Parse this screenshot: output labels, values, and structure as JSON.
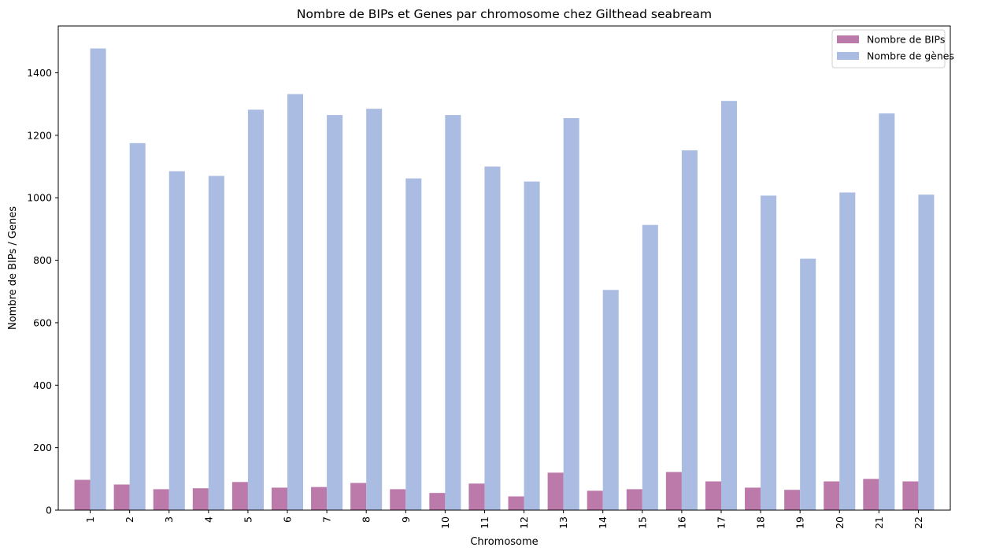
{
  "chart_data": {
    "type": "bar",
    "title": "Nombre de BIPs et Genes par chromosome chez Gilthead seabream",
    "xlabel": "Chromosome",
    "ylabel": "Nombre de BIPs / Genes",
    "ylim": [
      0,
      1550
    ],
    "yticks": [
      0,
      200,
      400,
      600,
      800,
      1000,
      1200,
      1400
    ],
    "grid": false,
    "legend_position": "top-right",
    "categories": [
      "1",
      "2",
      "3",
      "4",
      "5",
      "6",
      "7",
      "8",
      "9",
      "10",
      "11",
      "12",
      "13",
      "14",
      "15",
      "16",
      "17",
      "18",
      "19",
      "20",
      "21",
      "22"
    ],
    "series": [
      {
        "name": "Nombre de BIPs",
        "color": "#bb7aa9",
        "values": [
          97,
          82,
          67,
          70,
          90,
          72,
          74,
          87,
          67,
          55,
          85,
          44,
          120,
          62,
          67,
          122,
          92,
          72,
          65,
          92,
          100,
          92
        ]
      },
      {
        "name": "Nombre de gènes",
        "color": "#aabce1",
        "values": [
          1478,
          1175,
          1085,
          1070,
          1282,
          1332,
          1265,
          1285,
          1062,
          1265,
          1100,
          1052,
          1255,
          705,
          913,
          1152,
          1310,
          1007,
          805,
          1017,
          1270,
          1010
        ]
      }
    ]
  }
}
